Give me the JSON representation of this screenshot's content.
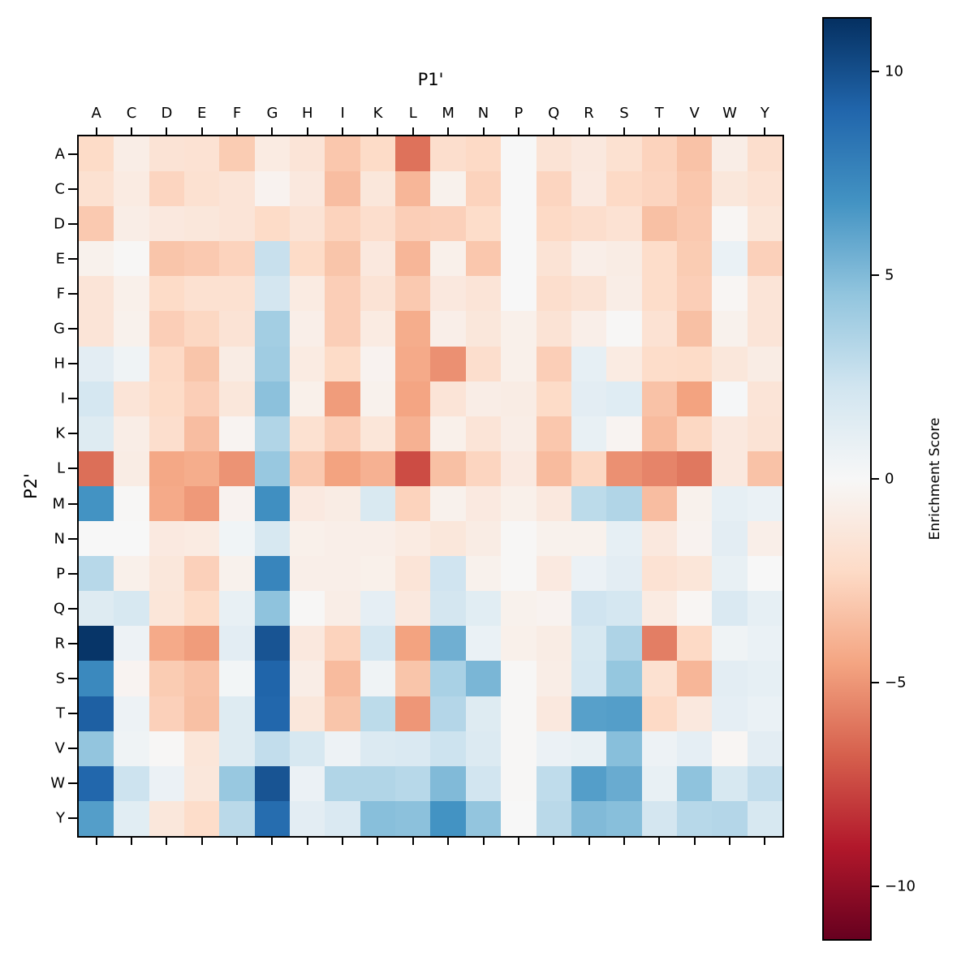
{
  "title": "P1'",
  "axes": {
    "x_title": "P1'",
    "y_title": "P2'"
  },
  "colorbar": {
    "label": "Enrichment Score",
    "ticks": [
      10,
      5,
      0,
      -5,
      -10
    ],
    "vmin": -11.3,
    "vmax": 11.3
  },
  "chart_data": {
    "type": "heatmap",
    "title": "P1'",
    "xlabel": "P1'",
    "ylabel": "P2'",
    "colormap": "RdBu",
    "vmin": -11.3,
    "vmax": 11.3,
    "legend_position": "right-colorbar",
    "grid": false,
    "colormap_anchors": [
      "#67001f",
      "#b2182b",
      "#d6604d",
      "#f4a582",
      "#fddbc7",
      "#f7f7f7",
      "#d1e5f0",
      "#92c5de",
      "#4393c3",
      "#2166ac",
      "#053061"
    ],
    "x_categories": [
      "A",
      "C",
      "D",
      "E",
      "F",
      "G",
      "H",
      "I",
      "K",
      "L",
      "M",
      "N",
      "P",
      "Q",
      "R",
      "S",
      "T",
      "V",
      "W",
      "Y"
    ],
    "y_categories": [
      "A",
      "C",
      "D",
      "E",
      "F",
      "G",
      "H",
      "I",
      "K",
      "L",
      "M",
      "N",
      "P",
      "Q",
      "R",
      "S",
      "T",
      "V",
      "W",
      "Y"
    ],
    "values": [
      [
        -2.2,
        -0.8,
        -1.6,
        -1.7,
        -2.9,
        -1.0,
        -1.5,
        -3.1,
        -2.2,
        -6.2,
        -2.0,
        -2.3,
        0.0,
        -1.6,
        -1.2,
        -1.8,
        -2.6,
        -3.3,
        -0.8,
        -2.0
      ],
      [
        -1.8,
        -1.0,
        -2.5,
        -1.8,
        -1.5,
        -0.4,
        -1.2,
        -3.5,
        -1.3,
        -3.8,
        -0.5,
        -2.6,
        0.0,
        -2.5,
        -1.1,
        -2.3,
        -2.5,
        -3.1,
        -1.3,
        -1.7
      ],
      [
        -3.0,
        -0.8,
        -1.2,
        -1.3,
        -1.5,
        -2.2,
        -1.6,
        -2.6,
        -2.0,
        -2.8,
        -2.7,
        -2.1,
        0.0,
        -2.3,
        -2.0,
        -1.7,
        -3.4,
        -3.0,
        -0.2,
        -1.4
      ],
      [
        -0.5,
        -0.1,
        -3.2,
        -3.0,
        -2.6,
        2.6,
        -2.2,
        -3.2,
        -1.2,
        -3.8,
        -0.6,
        -3.1,
        0.0,
        -1.6,
        -0.7,
        -0.9,
        -2.1,
        -2.9,
        0.8,
        -2.7
      ],
      [
        -1.5,
        -0.6,
        -2.2,
        -1.8,
        -1.8,
        2.1,
        -1.0,
        -2.8,
        -1.6,
        -3.0,
        -1.2,
        -1.5,
        0.0,
        -2.0,
        -1.6,
        -0.8,
        -2.1,
        -2.8,
        -0.2,
        -1.5
      ],
      [
        -1.5,
        -0.5,
        -2.8,
        -2.4,
        -1.6,
        3.9,
        -0.7,
        -2.8,
        -1.0,
        -4.2,
        -0.7,
        -1.3,
        -0.6,
        -1.6,
        -0.7,
        -0.1,
        -1.7,
        -3.4,
        -0.5,
        -1.5
      ],
      [
        1.2,
        0.5,
        -2.3,
        -3.2,
        -0.9,
        4.0,
        -1.0,
        -2.2,
        -0.4,
        -4.3,
        -5.2,
        -2.0,
        -0.6,
        -2.8,
        1.0,
        -1.0,
        -2.1,
        -2.2,
        -1.3,
        -0.9
      ],
      [
        2.0,
        -1.5,
        -2.2,
        -2.8,
        -1.3,
        4.7,
        -0.6,
        -4.8,
        -0.5,
        -4.5,
        -1.5,
        -0.8,
        -0.9,
        -2.2,
        1.2,
        1.4,
        -3.3,
        -4.6,
        0.1,
        -1.5
      ],
      [
        1.5,
        -0.8,
        -2.0,
        -3.5,
        -0.3,
        3.4,
        -1.8,
        -2.8,
        -1.4,
        -4.0,
        -0.6,
        -1.5,
        -0.8,
        -3.1,
        0.9,
        -0.3,
        -3.6,
        -2.4,
        -1.2,
        -1.6
      ],
      [
        -6.3,
        -0.9,
        -4.4,
        -4.2,
        -5.1,
        4.3,
        -3.0,
        -4.6,
        -4.0,
        -7.4,
        -3.4,
        -2.5,
        -1.1,
        -3.6,
        -2.4,
        -5.2,
        -5.6,
        -6.0,
        -1.2,
        -3.3
      ],
      [
        6.8,
        -0.1,
        -4.3,
        -4.9,
        -0.4,
        7.0,
        -1.1,
        -0.9,
        1.8,
        -2.6,
        -0.5,
        -1.1,
        -0.6,
        -1.2,
        3.0,
        3.4,
        -3.5,
        -0.5,
        1.0,
        0.8
      ],
      [
        0.0,
        0.0,
        -1.1,
        -1.0,
        0.4,
        1.9,
        -0.6,
        -0.7,
        -0.7,
        -1.0,
        -1.3,
        -0.9,
        -0.1,
        -0.5,
        -0.5,
        1.0,
        -1.2,
        -0.4,
        1.2,
        -0.7
      ],
      [
        3.2,
        -0.6,
        -1.3,
        -2.7,
        -0.5,
        7.5,
        -0.7,
        -0.7,
        -0.6,
        -1.5,
        2.3,
        -0.5,
        -0.1,
        -1.1,
        0.7,
        1.2,
        -1.7,
        -1.4,
        0.9,
        0.0
      ],
      [
        1.5,
        1.9,
        -1.4,
        -2.2,
        0.9,
        4.6,
        -0.1,
        -0.8,
        1.1,
        -1.2,
        2.1,
        1.3,
        -0.5,
        -0.4,
        2.3,
        2.0,
        -1.0,
        -0.2,
        1.7,
        1.0
      ],
      [
        11.1,
        0.6,
        -4.3,
        -4.8,
        1.2,
        9.8,
        -1.2,
        -2.6,
        2.0,
        -4.6,
        5.5,
        0.8,
        -0.6,
        -0.9,
        1.9,
        3.5,
        -5.8,
        -2.3,
        0.5,
        0.8
      ],
      [
        7.3,
        -0.3,
        -2.9,
        -3.3,
        0.3,
        9.1,
        -0.8,
        -3.6,
        0.5,
        -3.2,
        3.7,
        5.2,
        -0.1,
        -0.8,
        2.0,
        4.4,
        -1.8,
        -3.8,
        1.2,
        1.0
      ],
      [
        9.3,
        0.6,
        -2.7,
        -3.4,
        1.5,
        9.0,
        -1.3,
        -3.2,
        3.0,
        -5.0,
        3.3,
        1.5,
        -0.1,
        -1.2,
        6.2,
        6.3,
        -2.3,
        -1.2,
        1.1,
        0.8
      ],
      [
        4.5,
        0.5,
        -0.1,
        -1.4,
        1.5,
        2.8,
        1.9,
        0.6,
        1.6,
        1.7,
        2.4,
        1.6,
        -0.1,
        0.7,
        0.9,
        4.8,
        0.6,
        1.1,
        -0.2,
        1.2
      ],
      [
        9.0,
        2.4,
        0.7,
        -1.3,
        4.3,
        9.8,
        0.7,
        3.4,
        3.4,
        3.2,
        5.0,
        2.2,
        -0.1,
        2.9,
        6.3,
        5.7,
        0.9,
        4.6,
        1.9,
        2.8
      ],
      [
        6.3,
        1.3,
        -1.3,
        -2.1,
        3.1,
        8.7,
        1.2,
        1.7,
        4.8,
        4.7,
        6.8,
        4.5,
        0.0,
        3.1,
        5.0,
        4.8,
        2.1,
        3.2,
        3.3,
        1.9
      ]
    ]
  }
}
